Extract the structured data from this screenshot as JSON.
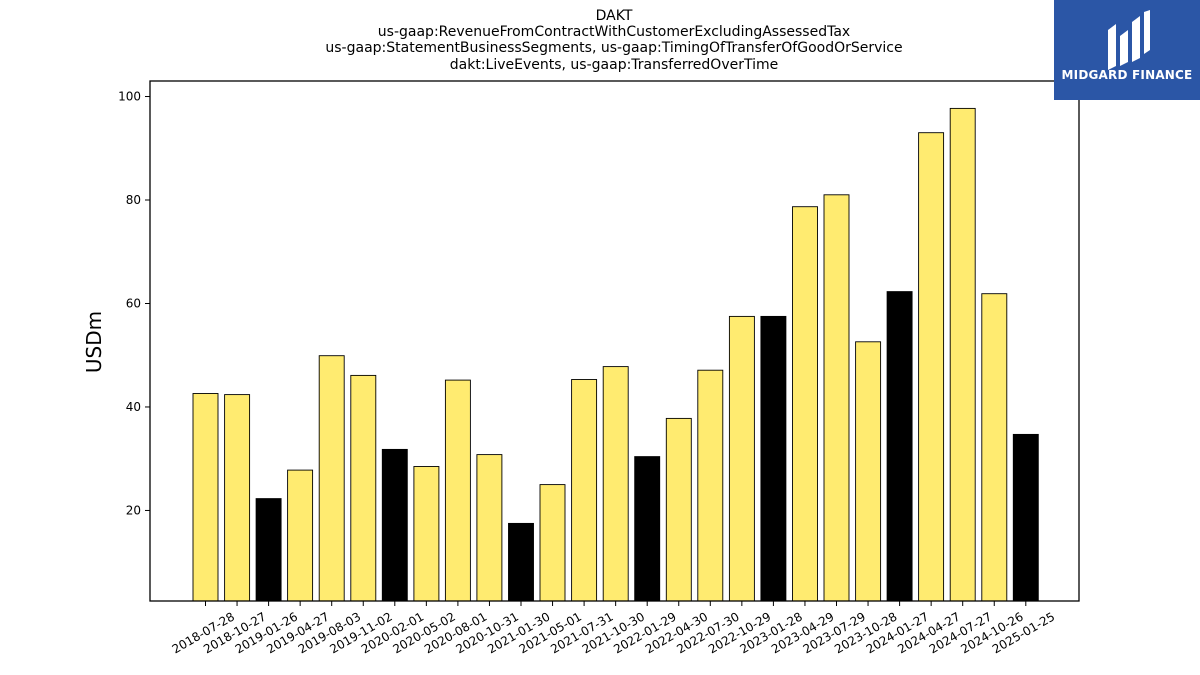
{
  "chart_data": {
    "type": "bar",
    "title_lines": [
      "DAKT",
      "us-gaap:RevenueFromContractWithCustomerExcludingAssessedTax",
      "us-gaap:StatementBusinessSegments, us-gaap:TimingOfTransferOfGoodOrService",
      "dakt:LiveEvents, us-gaap:TransferredOverTime"
    ],
    "ylabel": "USDm",
    "xlabel": "",
    "ylim": [
      2.5,
      103
    ],
    "yticks": [
      20,
      40,
      60,
      80,
      100
    ],
    "grid": false,
    "categories": [
      "2018-07-28",
      "2018-10-27",
      "2019-01-26",
      "2019-04-27",
      "2019-08-03",
      "2019-11-02",
      "2020-02-01",
      "2020-05-02",
      "2020-08-01",
      "2020-10-31",
      "2021-01-30",
      "2021-05-01",
      "2021-07-31",
      "2021-10-30",
      "2022-01-29",
      "2022-04-30",
      "2022-07-30",
      "2022-10-29",
      "2023-01-28",
      "2023-04-29",
      "2023-07-29",
      "2023-10-28",
      "2024-01-27",
      "2024-04-27",
      "2024-07-27",
      "2024-10-26",
      "2025-01-25"
    ],
    "values": [
      42.6,
      42.4,
      22.3,
      27.8,
      49.9,
      46.1,
      31.8,
      28.5,
      45.2,
      30.8,
      17.5,
      25.0,
      45.3,
      47.8,
      30.4,
      37.8,
      47.1,
      57.5,
      57.5,
      78.7,
      81.0,
      52.6,
      62.3,
      93.0,
      97.7,
      61.9,
      34.7
    ],
    "highlight_indices": [
      2,
      6,
      10,
      14,
      18,
      22,
      26
    ],
    "colors": {
      "bar": "#ffeb70",
      "highlight": "#000000",
      "edge": "#000000"
    }
  },
  "logo": {
    "text": "MIDGARD FINANCE",
    "background": "#2b56a6"
  }
}
